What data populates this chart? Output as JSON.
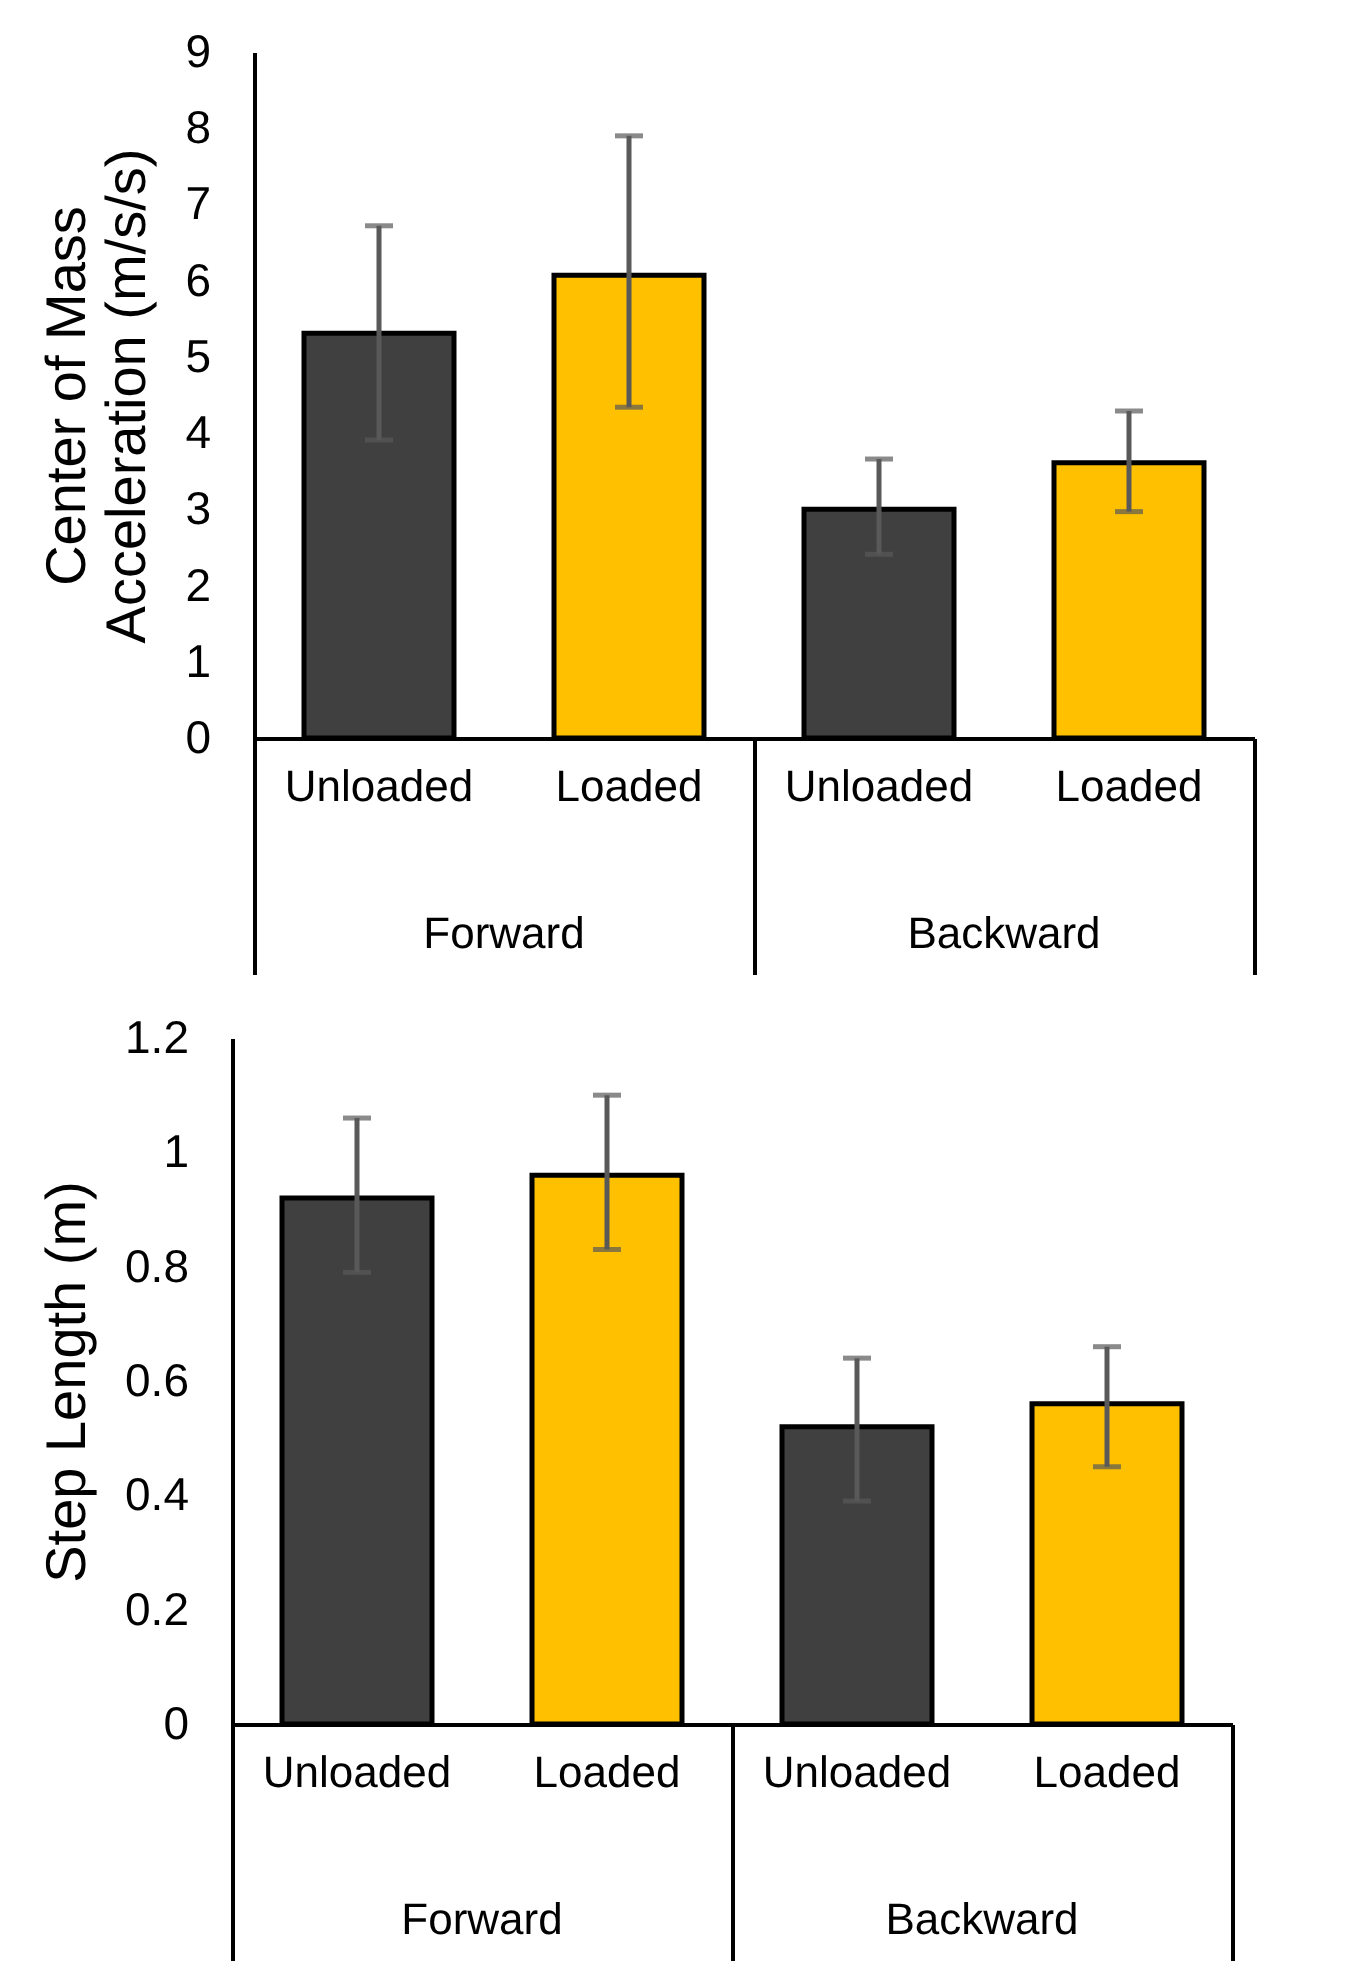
{
  "chart_data": [
    {
      "type": "bar",
      "ylabel": "Center of Mass Acceleration (m/s/s)",
      "categories": [
        "Unloaded",
        "Loaded",
        "Unloaded",
        "Loaded"
      ],
      "annotations": [
        "Forward",
        "Backward"
      ],
      "values": [
        5.31,
        6.07,
        3.0,
        3.61
      ],
      "colors": [
        "#404040",
        "#ffc000",
        "#404040",
        "#ffc000"
      ],
      "errors": [
        [
          3.91,
          6.72
        ],
        [
          4.34,
          7.9
        ],
        [
          2.41,
          3.66
        ],
        [
          2.97,
          4.29
        ]
      ],
      "ylim": [
        0,
        9
      ],
      "yticks": [
        0,
        1,
        2,
        3,
        4,
        5,
        6,
        7,
        8,
        9
      ],
      "grid": false
    },
    {
      "type": "bar",
      "ylabel": "Step Length (m)",
      "categories": [
        "Unloaded",
        "Loaded",
        "Unloaded",
        "Loaded"
      ],
      "annotations": [
        "Forward",
        "Backward"
      ],
      "values": [
        0.92,
        0.96,
        0.52,
        0.56
      ],
      "colors": [
        "#404040",
        "#ffc000",
        "#404040",
        "#ffc000"
      ],
      "errors": [
        [
          0.79,
          1.06
        ],
        [
          0.83,
          1.1
        ],
        [
          0.39,
          0.64
        ],
        [
          0.45,
          0.66
        ]
      ],
      "ylim": [
        0,
        1.2
      ],
      "yticks": [
        0,
        0.2,
        0.4,
        0.6,
        0.8,
        1,
        1.2
      ],
      "grid": false
    }
  ]
}
